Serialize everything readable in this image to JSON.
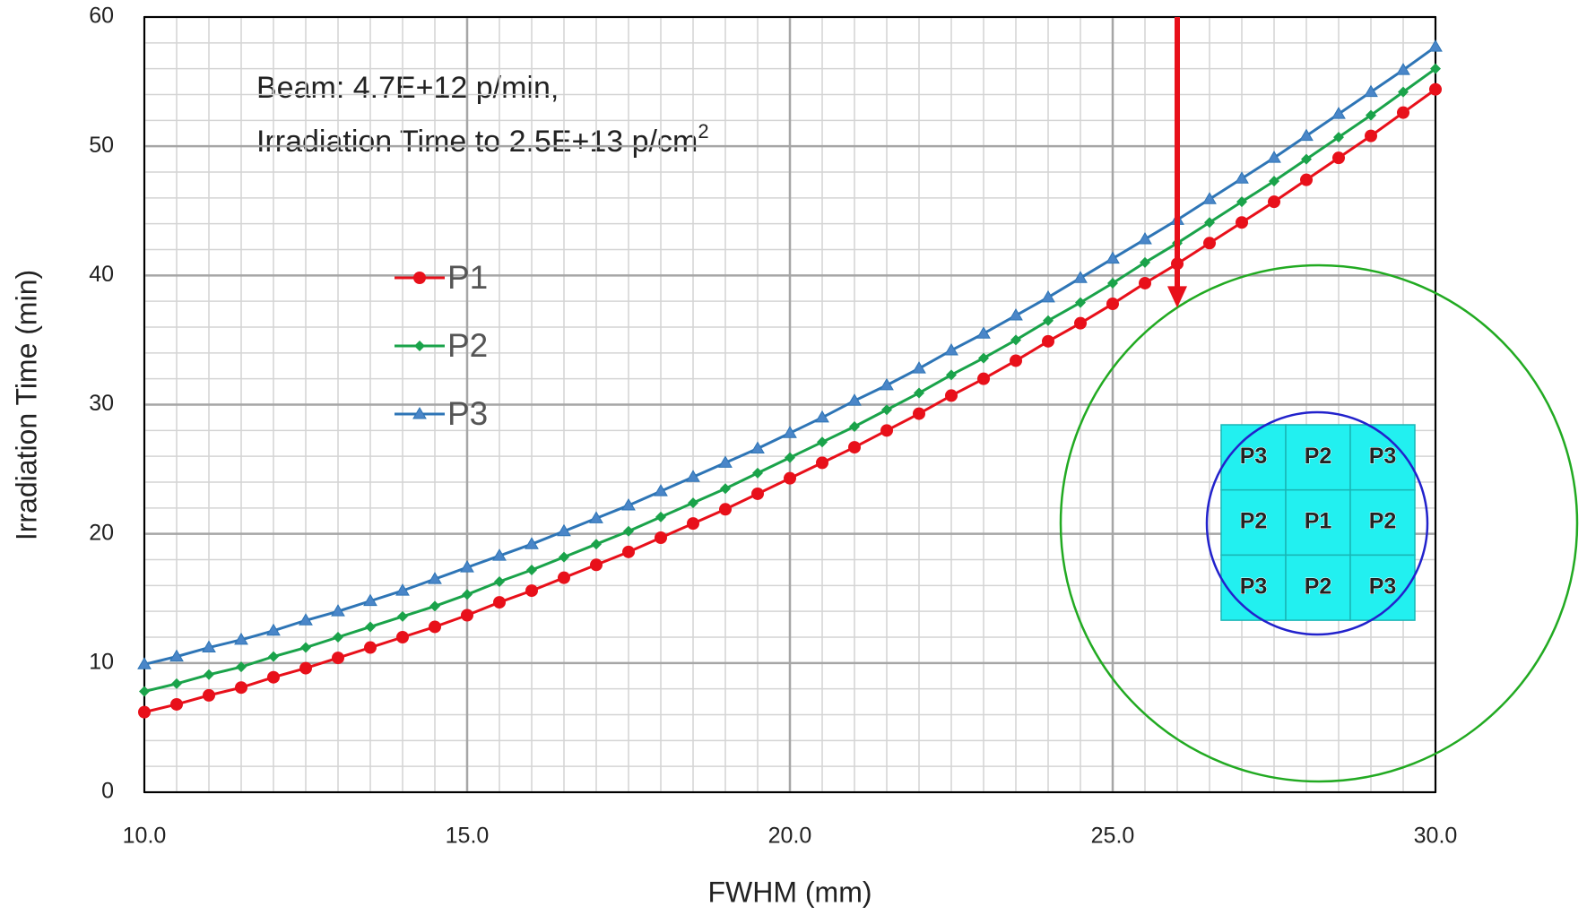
{
  "chart_data": {
    "type": "line",
    "x_label": "FWHM (mm)",
    "y_label": "Irradiation Time (min)",
    "annotation": {
      "line1": "Beam: 4.7E+12 p/min,",
      "line2": "Irradiation Time to  2.5E+13 p/cm",
      "line2_superscript": "2"
    },
    "x": [
      10,
      10.5,
      11,
      11.5,
      12,
      12.5,
      13,
      13.5,
      14,
      14.5,
      15,
      15.5,
      16,
      16.5,
      17,
      17.5,
      18,
      18.5,
      19,
      19.5,
      20,
      20.5,
      21,
      21.5,
      22,
      22.5,
      23,
      23.5,
      24,
      24.5,
      25,
      25.5,
      26,
      26.5,
      27,
      27.5,
      28,
      28.5,
      29,
      29.5,
      30
    ],
    "series": [
      {
        "name": "P1",
        "color": "#e8101a",
        "marker": "circle",
        "values": [
          6.2,
          6.8,
          7.5,
          8.1,
          8.9,
          9.6,
          10.4,
          11.2,
          12.0,
          12.8,
          13.7,
          14.7,
          15.6,
          16.6,
          17.6,
          18.6,
          19.7,
          20.8,
          21.9,
          23.1,
          24.3,
          25.5,
          26.7,
          28.0,
          29.3,
          30.7,
          32.0,
          33.4,
          34.9,
          36.3,
          37.8,
          39.4,
          40.9,
          42.5,
          44.1,
          45.7,
          47.4,
          49.1,
          50.8,
          52.6,
          54.4
        ]
      },
      {
        "name": "P2",
        "color": "#1aa34a",
        "marker": "diamond",
        "values": [
          7.8,
          8.4,
          9.1,
          9.7,
          10.5,
          11.2,
          12.0,
          12.8,
          13.6,
          14.4,
          15.3,
          16.3,
          17.2,
          18.2,
          19.2,
          20.2,
          21.3,
          22.4,
          23.5,
          24.7,
          25.9,
          27.1,
          28.3,
          29.6,
          30.9,
          32.3,
          33.6,
          35.0,
          36.5,
          37.9,
          39.4,
          41.0,
          42.5,
          44.1,
          45.7,
          47.3,
          49.0,
          50.7,
          52.4,
          54.2,
          56.0
        ]
      },
      {
        "name": "P3",
        "color": "#2e75b6",
        "marker": "triangle",
        "values": [
          9.9,
          10.5,
          11.2,
          11.8,
          12.5,
          13.3,
          14.0,
          14.8,
          15.6,
          16.5,
          17.4,
          18.3,
          19.2,
          20.2,
          21.2,
          22.2,
          23.3,
          24.4,
          25.5,
          26.6,
          27.8,
          29.0,
          30.3,
          31.5,
          32.8,
          34.2,
          35.5,
          36.9,
          38.3,
          39.8,
          41.3,
          42.8,
          44.3,
          45.9,
          47.5,
          49.1,
          50.8,
          52.5,
          54.2,
          55.9,
          57.7
        ]
      }
    ],
    "xlim": [
      10,
      30
    ],
    "xticks": [
      {
        "value": 10,
        "label": "10.0"
      },
      {
        "value": 15,
        "label": "15.0"
      },
      {
        "value": 20,
        "label": "20.0"
      },
      {
        "value": 25,
        "label": "25.0"
      },
      {
        "value": 30,
        "label": "30.0"
      }
    ],
    "ylim": [
      0,
      60
    ],
    "yticks": [
      0,
      10,
      20,
      30,
      40,
      50,
      60
    ],
    "grid": true,
    "arrow": {
      "color": "#e8101a",
      "x": 26,
      "y_start": 60,
      "y_end": 37.5
    },
    "inset_grid": [
      [
        "P3",
        "P2",
        "P3"
      ],
      [
        "P2",
        "P1",
        "P2"
      ],
      [
        "P3",
        "P2",
        "P3"
      ]
    ]
  }
}
